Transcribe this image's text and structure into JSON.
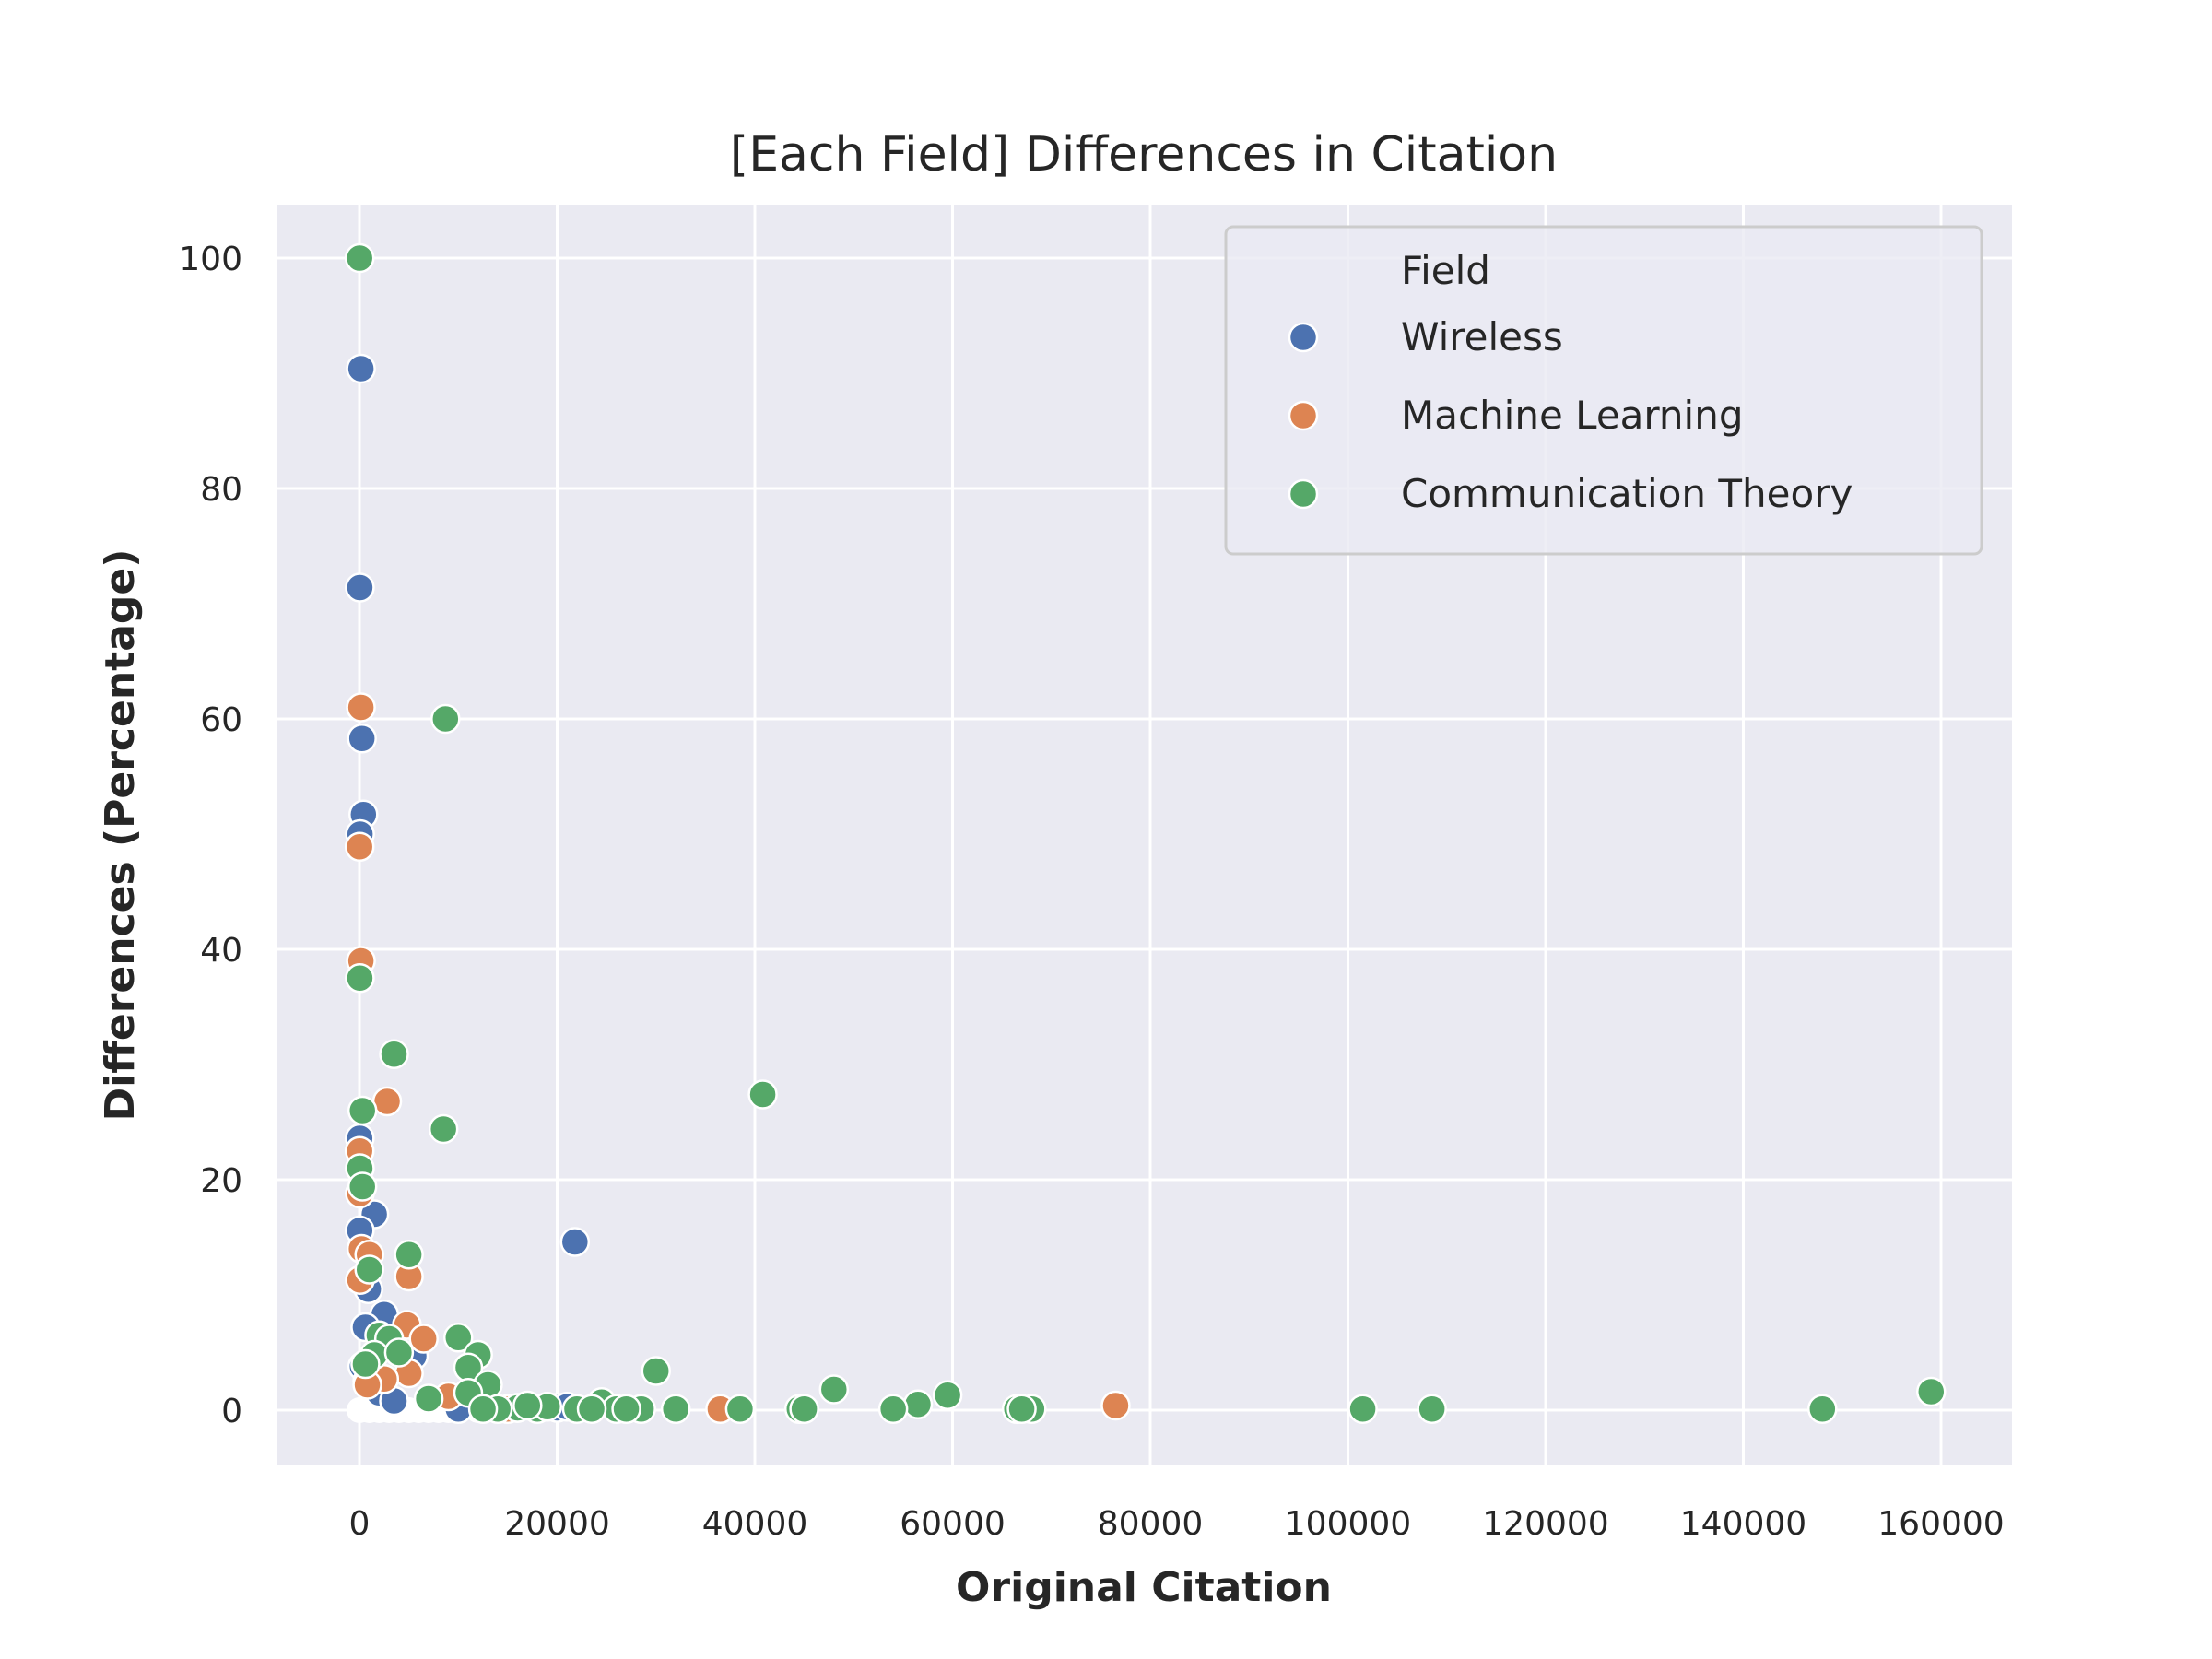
{
  "chart_data": {
    "type": "scatter",
    "title": "[Each Field] Differences in Citation",
    "xlabel": "Original Citation",
    "ylabel": "Differences (Percentage)",
    "xlim": [
      -12000,
      167000
    ],
    "ylim": [
      -5,
      105
    ],
    "xticks": [
      0,
      20000,
      40000,
      60000,
      80000,
      100000,
      120000,
      140000,
      160000
    ],
    "yticks": [
      0,
      20,
      40,
      60,
      80,
      100
    ],
    "grid": true,
    "legend": {
      "title": "Field",
      "position": "top-right"
    },
    "series": [
      {
        "name": "Wireless",
        "color": "#4c72b0",
        "points": [
          [
            150,
            90.4
          ],
          [
            40,
            71.4
          ],
          [
            250,
            58.3
          ],
          [
            400,
            51.7
          ],
          [
            60,
            50.0
          ],
          [
            30,
            23.6
          ],
          [
            1500,
            17.0
          ],
          [
            30,
            15.6
          ],
          [
            900,
            10.5
          ],
          [
            2500,
            8.3
          ],
          [
            600,
            7.2
          ],
          [
            5500,
            4.7
          ],
          [
            300,
            3.8
          ],
          [
            21800,
            14.6
          ],
          [
            20000,
            0.2
          ],
          [
            21000,
            0.3
          ],
          [
            2000,
            1.5
          ],
          [
            800,
            2.5
          ],
          [
            3500,
            0.8
          ],
          [
            10000,
            0.1
          ]
        ]
      },
      {
        "name": "Machine Learning",
        "color": "#dd8452",
        "points": [
          [
            150,
            61.0
          ],
          [
            20,
            48.9
          ],
          [
            150,
            39.0
          ],
          [
            2800,
            26.8
          ],
          [
            20,
            22.5
          ],
          [
            40,
            18.8
          ],
          [
            200,
            14.0
          ],
          [
            1000,
            13.5
          ],
          [
            50,
            11.3
          ],
          [
            5000,
            11.6
          ],
          [
            4800,
            7.4
          ],
          [
            6500,
            6.2
          ],
          [
            5000,
            3.2
          ],
          [
            2500,
            2.7
          ],
          [
            800,
            2.2
          ],
          [
            9000,
            1.2
          ],
          [
            36500,
            0.1
          ],
          [
            76500,
            0.4
          ],
          [
            15000,
            0.1
          ]
        ]
      },
      {
        "name": "Communication Theory",
        "color": "#55a868",
        "points": [
          [
            20,
            100.0
          ],
          [
            8700,
            60.0
          ],
          [
            40,
            37.5
          ],
          [
            3500,
            30.9
          ],
          [
            300,
            26.0
          ],
          [
            8500,
            24.4
          ],
          [
            40,
            21.0
          ],
          [
            300,
            19.4
          ],
          [
            5000,
            13.5
          ],
          [
            1000,
            12.2
          ],
          [
            10000,
            6.3
          ],
          [
            12000,
            4.8
          ],
          [
            2000,
            6.5
          ],
          [
            3000,
            6.2
          ],
          [
            1500,
            4.8
          ],
          [
            4000,
            5.0
          ],
          [
            11000,
            3.7
          ],
          [
            13000,
            2.2
          ],
          [
            11000,
            1.5
          ],
          [
            7000,
            1.0
          ],
          [
            30000,
            3.4
          ],
          [
            40800,
            27.4
          ],
          [
            48000,
            1.8
          ],
          [
            59500,
            1.3
          ],
          [
            56500,
            0.5
          ],
          [
            54000,
            0.1
          ],
          [
            66500,
            0.1
          ],
          [
            68000,
            0.1
          ],
          [
            67000,
            0.1
          ],
          [
            101500,
            0.1
          ],
          [
            108500,
            0.1
          ],
          [
            148000,
            0.1
          ],
          [
            159000,
            1.6
          ],
          [
            24500,
            0.7
          ],
          [
            32000,
            0.1
          ],
          [
            38500,
            0.1
          ],
          [
            44500,
            0.1
          ],
          [
            45000,
            0.1
          ],
          [
            28500,
            0.1
          ],
          [
            26000,
            0.1
          ],
          [
            22000,
            0.1
          ],
          [
            18000,
            0.1
          ],
          [
            16000,
            0.2
          ],
          [
            14000,
            0.1
          ],
          [
            12500,
            0.1
          ],
          [
            23500,
            0.1
          ],
          [
            27000,
            0.1
          ],
          [
            19000,
            0.3
          ],
          [
            17000,
            0.4
          ],
          [
            600,
            4.0
          ]
        ]
      }
    ]
  }
}
